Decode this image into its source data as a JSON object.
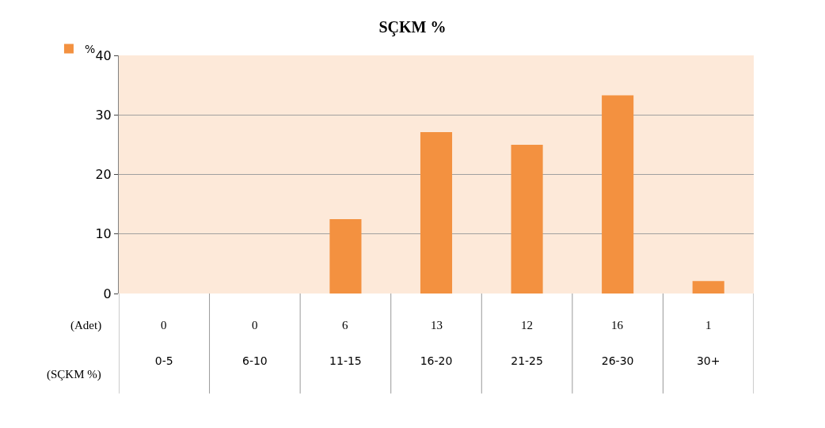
{
  "chart_data": {
    "type": "bar",
    "title": "SÇKM %",
    "xlabel": "(SÇKM %)",
    "categories": [
      "0-5",
      "6-10",
      "11-15",
      "16-20",
      "21-25",
      "26-30",
      "30+"
    ],
    "series": [
      {
        "name": "%",
        "color": "#f39140",
        "values": [
          0,
          0,
          12.5,
          27.1,
          25,
          33.3,
          2.1
        ]
      }
    ],
    "annotations": [
      "(Adet)",
      "0",
      "0",
      "6",
      "13",
      "12",
      "16",
      "1"
    ],
    "ylim": [
      0,
      40
    ],
    "yticks": [
      0,
      10,
      20,
      30,
      40
    ],
    "grid": "y",
    "legend": "top left"
  }
}
